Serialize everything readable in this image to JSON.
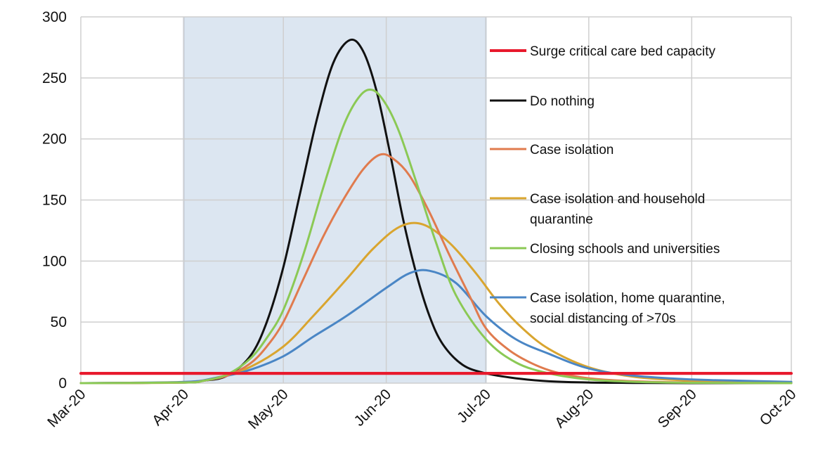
{
  "chart_data": {
    "type": "line",
    "title": "",
    "xlabel": "",
    "ylabel": "",
    "ylim": [
      0,
      300
    ],
    "yticks": [
      0,
      50,
      100,
      150,
      200,
      250,
      300
    ],
    "xlim": [
      "2020-03-01",
      "2020-10-01"
    ],
    "xticks": [
      {
        "date": "2020-03-01",
        "label": "Mar-20"
      },
      {
        "date": "2020-04-01",
        "label": "Apr-20"
      },
      {
        "date": "2020-05-01",
        "label": "May-20"
      },
      {
        "date": "2020-06-01",
        "label": "Jun-20"
      },
      {
        "date": "2020-07-01",
        "label": "Jul-20"
      },
      {
        "date": "2020-08-01",
        "label": "Aug-20"
      },
      {
        "date": "2020-09-01",
        "label": "Sep-20"
      },
      {
        "date": "2020-10-01",
        "label": "Oct-20"
      }
    ],
    "grid": true,
    "legend_position": "right",
    "shaded_region": {
      "start": "2020-04-01",
      "end": "2020-07-01",
      "color": "#dce6f1"
    },
    "series": [
      {
        "name": "Surge critical care bed capacity",
        "color": "#e8192c",
        "width": 4,
        "x": [
          "2020-03-01",
          "2020-10-01"
        ],
        "y": [
          8,
          8
        ]
      },
      {
        "name": "Do nothing",
        "color": "#111111",
        "width": 3,
        "x": [
          "2020-03-01",
          "2020-04-01",
          "2020-04-07",
          "2020-04-14",
          "2020-04-21",
          "2020-04-26",
          "2020-05-01",
          "2020-05-06",
          "2020-05-11",
          "2020-05-16",
          "2020-05-21",
          "2020-05-25",
          "2020-05-29",
          "2020-06-02",
          "2020-06-06",
          "2020-06-10",
          "2020-06-14",
          "2020-06-18",
          "2020-06-24",
          "2020-07-01",
          "2020-07-10",
          "2020-07-20",
          "2020-08-01",
          "2020-08-15",
          "2020-09-01",
          "2020-10-01"
        ],
        "y": [
          0,
          0.5,
          2,
          6,
          22,
          50,
          95,
          155,
          215,
          262,
          281,
          272,
          240,
          190,
          135,
          90,
          55,
          32,
          15,
          8,
          4,
          1.5,
          0.5,
          0.2,
          0,
          0
        ]
      },
      {
        "name": "Case isolation",
        "color": "#e07b4e",
        "width": 3,
        "x": [
          "2020-03-01",
          "2020-04-01",
          "2020-04-07",
          "2020-04-14",
          "2020-04-21",
          "2020-04-26",
          "2020-05-01",
          "2020-05-07",
          "2020-05-13",
          "2020-05-19",
          "2020-05-25",
          "2020-05-30",
          "2020-06-03",
          "2020-06-08",
          "2020-06-14",
          "2020-06-20",
          "2020-06-26",
          "2020-07-01",
          "2020-07-08",
          "2020-07-15",
          "2020-07-22",
          "2020-08-01",
          "2020-08-15",
          "2020-09-01",
          "2020-10-01"
        ],
        "y": [
          0,
          0.5,
          2,
          6,
          16,
          30,
          50,
          85,
          120,
          150,
          175,
          187,
          184,
          170,
          140,
          105,
          72,
          45,
          27,
          16,
          9,
          4,
          1.5,
          0.5,
          0
        ]
      },
      {
        "name": "Case isolation and household quarantine",
        "color": "#d9a52f",
        "width": 3,
        "x": [
          "2020-03-01",
          "2020-04-01",
          "2020-04-10",
          "2020-04-20",
          "2020-05-01",
          "2020-05-10",
          "2020-05-20",
          "2020-05-28",
          "2020-06-05",
          "2020-06-12",
          "2020-06-20",
          "2020-06-28",
          "2020-07-05",
          "2020-07-12",
          "2020-07-20",
          "2020-08-01",
          "2020-08-15",
          "2020-09-01",
          "2020-09-15",
          "2020-10-01"
        ],
        "y": [
          0,
          0.5,
          4,
          12,
          30,
          55,
          85,
          110,
          128,
          130,
          115,
          90,
          65,
          45,
          28,
          13,
          5,
          2,
          1,
          0.5
        ]
      },
      {
        "name": "Closing schools and universities",
        "color": "#8bc955",
        "width": 3,
        "x": [
          "2020-03-01",
          "2020-04-01",
          "2020-04-07",
          "2020-04-14",
          "2020-04-21",
          "2020-04-26",
          "2020-05-01",
          "2020-05-07",
          "2020-05-13",
          "2020-05-19",
          "2020-05-24",
          "2020-05-28",
          "2020-06-01",
          "2020-06-05",
          "2020-06-10",
          "2020-06-16",
          "2020-06-22",
          "2020-07-01",
          "2020-07-10",
          "2020-07-20",
          "2020-08-01",
          "2020-08-15",
          "2020-09-01",
          "2020-10-01"
        ],
        "y": [
          0,
          0.5,
          2,
          7,
          20,
          37,
          60,
          105,
          160,
          210,
          235,
          240,
          228,
          205,
          165,
          115,
          72,
          36,
          17,
          8,
          3,
          1,
          0.3,
          0
        ]
      },
      {
        "name": "Case isolation, home quarantine, social distancing of >70s",
        "color": "#4a86c5",
        "width": 3,
        "x": [
          "2020-03-01",
          "2020-04-01",
          "2020-04-10",
          "2020-04-20",
          "2020-05-01",
          "2020-05-10",
          "2020-05-20",
          "2020-06-01",
          "2020-06-08",
          "2020-06-14",
          "2020-06-22",
          "2020-07-01",
          "2020-07-10",
          "2020-07-20",
          "2020-08-01",
          "2020-08-15",
          "2020-09-01",
          "2020-09-15",
          "2020-10-01"
        ],
        "y": [
          0,
          1,
          4,
          10,
          22,
          38,
          55,
          78,
          90,
          92,
          82,
          55,
          36,
          24,
          12,
          6,
          3,
          2,
          1
        ]
      }
    ],
    "legend": [
      {
        "lines": [
          "Surge critical care bed capacity"
        ],
        "color": "#e8192c",
        "width": 4
      },
      {
        "lines": [
          "Do nothing"
        ],
        "color": "#111111",
        "width": 3
      },
      {
        "lines": [
          "Case isolation"
        ],
        "color": "#e07b4e",
        "width": 3
      },
      {
        "lines": [
          "Case isolation and household",
          "quarantine"
        ],
        "color": "#d9a52f",
        "width": 3
      },
      {
        "lines": [
          "Closing schools and universities"
        ],
        "color": "#8bc955",
        "width": 3
      },
      {
        "lines": [
          "Case isolation, home quarantine,",
          "social distancing of >70s"
        ],
        "color": "#4a86c5",
        "width": 3
      }
    ]
  }
}
